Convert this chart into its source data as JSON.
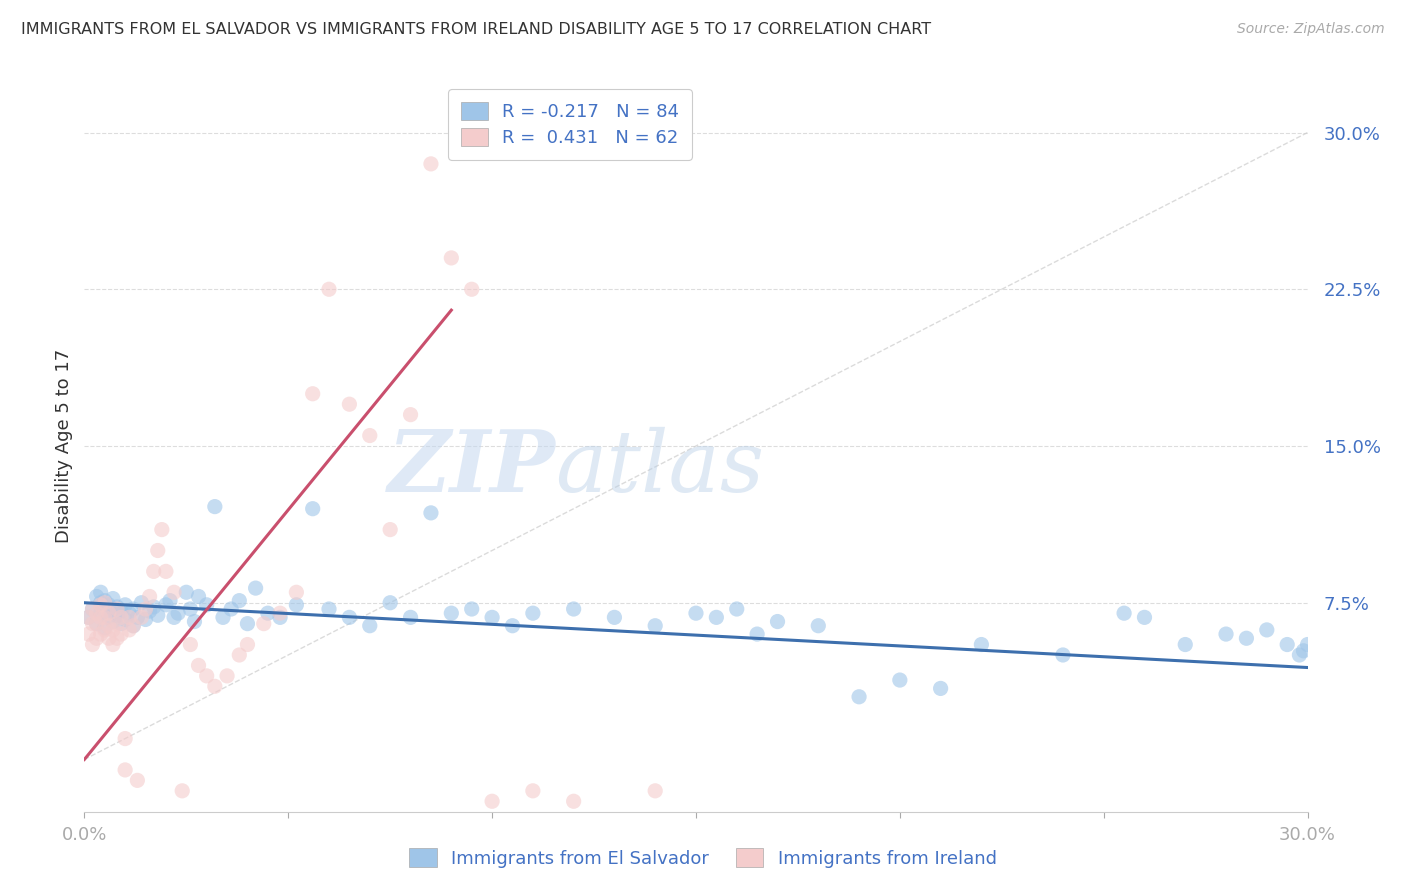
{
  "title": "IMMIGRANTS FROM EL SALVADOR VS IMMIGRANTS FROM IRELAND DISABILITY AGE 5 TO 17 CORRELATION CHART",
  "source": "Source: ZipAtlas.com",
  "ylabel": "Disability Age 5 to 17",
  "x_min": 0.0,
  "x_max": 0.3,
  "y_min": -0.025,
  "y_max": 0.325,
  "y_ticks_right": [
    0.075,
    0.15,
    0.225,
    0.3
  ],
  "y_tick_labels_right": [
    "7.5%",
    "15.0%",
    "22.5%",
    "30.0%"
  ],
  "color_blue": "#9fc5e8",
  "color_pink": "#f4cccc",
  "line_color_blue": "#3d6fad",
  "line_color_pink": "#c94f6d",
  "legend_r_blue": "-0.217",
  "legend_n_blue": "84",
  "legend_r_pink": "0.431",
  "legend_n_pink": "62",
  "diagonal_line_color": "#cccccc",
  "blue_trend_x": [
    0.0,
    0.3
  ],
  "blue_trend_y": [
    0.075,
    0.044
  ],
  "pink_trend_x": [
    0.0,
    0.09
  ],
  "pink_trend_y": [
    0.0,
    0.215
  ],
  "watermark_zip": "ZIP",
  "watermark_atlas": "atlas",
  "legend_label_blue": "Immigrants from El Salvador",
  "legend_label_pink": "Immigrants from Ireland",
  "background_color": "#ffffff",
  "grid_color": "#dddddd",
  "blue_scatter_x": [
    0.001,
    0.002,
    0.003,
    0.003,
    0.004,
    0.004,
    0.004,
    0.005,
    0.005,
    0.005,
    0.006,
    0.006,
    0.007,
    0.007,
    0.007,
    0.008,
    0.008,
    0.009,
    0.009,
    0.01,
    0.01,
    0.011,
    0.012,
    0.012,
    0.013,
    0.014,
    0.015,
    0.016,
    0.017,
    0.018,
    0.02,
    0.021,
    0.022,
    0.023,
    0.025,
    0.026,
    0.027,
    0.028,
    0.03,
    0.032,
    0.034,
    0.036,
    0.038,
    0.04,
    0.042,
    0.045,
    0.048,
    0.052,
    0.056,
    0.06,
    0.065,
    0.07,
    0.075,
    0.08,
    0.085,
    0.09,
    0.095,
    0.1,
    0.105,
    0.11,
    0.12,
    0.13,
    0.14,
    0.15,
    0.155,
    0.16,
    0.165,
    0.17,
    0.18,
    0.19,
    0.2,
    0.21,
    0.22,
    0.24,
    0.255,
    0.26,
    0.27,
    0.28,
    0.285,
    0.29,
    0.295,
    0.298,
    0.299,
    0.3
  ],
  "blue_scatter_y": [
    0.068,
    0.072,
    0.065,
    0.078,
    0.07,
    0.075,
    0.08,
    0.063,
    0.071,
    0.076,
    0.068,
    0.074,
    0.066,
    0.072,
    0.077,
    0.069,
    0.073,
    0.065,
    0.071,
    0.067,
    0.074,
    0.07,
    0.064,
    0.072,
    0.068,
    0.075,
    0.067,
    0.071,
    0.073,
    0.069,
    0.074,
    0.076,
    0.068,
    0.07,
    0.08,
    0.072,
    0.066,
    0.078,
    0.074,
    0.121,
    0.068,
    0.072,
    0.076,
    0.065,
    0.082,
    0.07,
    0.068,
    0.074,
    0.12,
    0.072,
    0.068,
    0.064,
    0.075,
    0.068,
    0.118,
    0.07,
    0.072,
    0.068,
    0.064,
    0.07,
    0.072,
    0.068,
    0.064,
    0.07,
    0.068,
    0.072,
    0.06,
    0.066,
    0.064,
    0.03,
    0.038,
    0.034,
    0.055,
    0.05,
    0.07,
    0.068,
    0.055,
    0.06,
    0.058,
    0.062,
    0.055,
    0.05,
    0.052,
    0.055
  ],
  "pink_scatter_x": [
    0.001,
    0.001,
    0.002,
    0.002,
    0.002,
    0.003,
    0.003,
    0.003,
    0.004,
    0.004,
    0.004,
    0.005,
    0.005,
    0.005,
    0.006,
    0.006,
    0.006,
    0.007,
    0.007,
    0.008,
    0.008,
    0.008,
    0.009,
    0.009,
    0.01,
    0.01,
    0.011,
    0.011,
    0.012,
    0.013,
    0.014,
    0.015,
    0.016,
    0.017,
    0.018,
    0.019,
    0.02,
    0.022,
    0.024,
    0.026,
    0.028,
    0.03,
    0.032,
    0.035,
    0.038,
    0.04,
    0.044,
    0.048,
    0.052,
    0.056,
    0.06,
    0.065,
    0.07,
    0.075,
    0.08,
    0.085,
    0.09,
    0.095,
    0.1,
    0.11,
    0.12,
    0.14
  ],
  "pink_scatter_y": [
    0.06,
    0.068,
    0.055,
    0.065,
    0.072,
    0.058,
    0.065,
    0.07,
    0.06,
    0.068,
    0.074,
    0.062,
    0.068,
    0.075,
    0.058,
    0.064,
    0.07,
    0.055,
    0.062,
    0.058,
    0.065,
    0.072,
    0.06,
    0.068,
    -0.005,
    0.01,
    0.062,
    0.068,
    0.064,
    -0.01,
    0.068,
    0.072,
    0.078,
    0.09,
    0.1,
    0.11,
    0.09,
    0.08,
    -0.015,
    0.055,
    0.045,
    0.04,
    0.035,
    0.04,
    0.05,
    0.055,
    0.065,
    0.07,
    0.08,
    0.175,
    0.225,
    0.17,
    0.155,
    0.11,
    0.165,
    0.285,
    0.24,
    0.225,
    -0.02,
    -0.015,
    -0.02,
    -0.015
  ]
}
